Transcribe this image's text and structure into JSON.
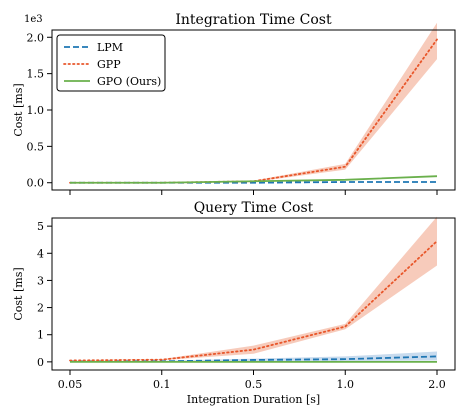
{
  "chart_data": [
    {
      "type": "line",
      "title": "Integration Time Cost",
      "xlabel": "",
      "ylabel": "Cost [ms]",
      "y_scale_label": "1e3",
      "x": [
        "0.05",
        "0.1",
        "0.5",
        "1.0",
        "2.0"
      ],
      "ylim": [
        -0.1,
        2.1
      ],
      "yticks": [
        "0.0",
        "0.5",
        "1.0",
        "1.5",
        "2.0"
      ],
      "ytick_values": [
        0,
        0.5,
        1.0,
        1.5,
        2.0
      ],
      "grid": false,
      "legend_position": "top-left",
      "series": [
        {
          "name": "LPM",
          "values": [
            0.0,
            0.0,
            0.0,
            0.01,
            0.01
          ],
          "lower": [
            0.0,
            0.0,
            0.0,
            0.01,
            0.01
          ],
          "upper": [
            0.0,
            0.0,
            0.0,
            0.01,
            0.01
          ],
          "color": "#1f77b4",
          "style": "dashed"
        },
        {
          "name": "GPP",
          "values": [
            0.0,
            0.0,
            0.02,
            0.22,
            1.97
          ],
          "lower": [
            0.0,
            0.0,
            0.01,
            0.18,
            1.7
          ],
          "upper": [
            0.0,
            0.0,
            0.03,
            0.26,
            2.2
          ],
          "color": "#e8562a",
          "band_color": "#f4b9a4",
          "style": "dotted"
        },
        {
          "name": "GPO (Ours)",
          "values": [
            0.0,
            0.0,
            0.02,
            0.04,
            0.09
          ],
          "lower": [
            0.0,
            0.0,
            0.02,
            0.04,
            0.09
          ],
          "upper": [
            0.0,
            0.0,
            0.02,
            0.04,
            0.09
          ],
          "color": "#6ab04c",
          "style": "solid"
        }
      ]
    },
    {
      "type": "line",
      "title": "Query Time Cost",
      "xlabel": "Integration Duration [s]",
      "ylabel": "Cost [ms]",
      "x": [
        "0.05",
        "0.1",
        "0.5",
        "1.0",
        "2.0"
      ],
      "ylim": [
        -0.3,
        5.3
      ],
      "yticks": [
        "0",
        "1",
        "2",
        "3",
        "4",
        "5"
      ],
      "ytick_values": [
        0,
        1,
        2,
        3,
        4,
        5
      ],
      "grid": false,
      "series": [
        {
          "name": "LPM",
          "values": [
            0.01,
            0.02,
            0.07,
            0.1,
            0.2
          ],
          "lower": [
            0.0,
            0.0,
            0.02,
            0.03,
            0.05
          ],
          "upper": [
            0.02,
            0.04,
            0.12,
            0.2,
            0.38
          ],
          "color": "#1f77b4",
          "band_color": "#b6cfe8",
          "style": "dashed"
        },
        {
          "name": "GPP",
          "values": [
            0.05,
            0.08,
            0.45,
            1.3,
            4.45
          ],
          "lower": [
            0.04,
            0.06,
            0.3,
            1.2,
            3.55
          ],
          "upper": [
            0.06,
            0.1,
            0.6,
            1.4,
            5.35
          ],
          "color": "#e8562a",
          "band_color": "#f4b9a4",
          "style": "dotted"
        },
        {
          "name": "GPO (Ours)",
          "values": [
            0.0,
            0.0,
            0.0,
            0.0,
            0.0
          ],
          "lower": [
            0.0,
            0.0,
            0.0,
            0.0,
            0.0
          ],
          "upper": [
            0.0,
            0.0,
            0.0,
            0.0,
            0.0
          ],
          "color": "#6ab04c",
          "style": "solid"
        }
      ]
    }
  ]
}
